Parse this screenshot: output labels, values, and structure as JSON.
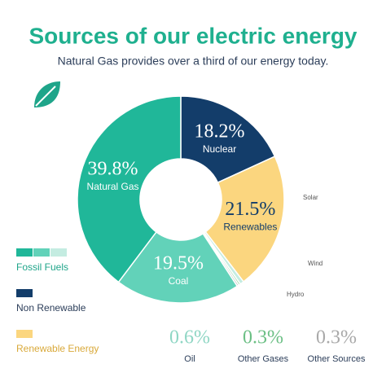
{
  "chart_data": {
    "type": "donut",
    "title": "Sources of our electric energy",
    "subtitle": "Natural Gas provides over a third of our energy today.",
    "categories": [
      "Nuclear",
      "Renewables",
      "Oil",
      "Other Gases",
      "Other Sources",
      "Coal",
      "Natural Gas"
    ],
    "values": [
      18.2,
      21.5,
      0.6,
      0.3,
      0.3,
      19.5,
      39.8
    ],
    "value_labels": [
      "18.2%",
      "21.5%",
      "0.6%",
      "0.3%",
      "0.3%",
      "19.5%",
      "39.8%"
    ],
    "colors": [
      "#133d6a",
      "#fbd67f",
      "#c4ece1",
      "#9ed8a8",
      "#c9c9c9",
      "#62d2b9",
      "#20b799"
    ],
    "legend": [
      {
        "label": "Fossil Fuels",
        "colors": [
          "#20b799",
          "#62d2b9",
          "#c4ece1"
        ]
      },
      {
        "label": "Non Renewable",
        "colors": [
          "#133d6a"
        ]
      },
      {
        "label": "Renewable Energy",
        "colors": [
          "#fbd67f"
        ]
      }
    ],
    "annotations": [
      "Solar",
      "Wind",
      "Hydro"
    ]
  }
}
